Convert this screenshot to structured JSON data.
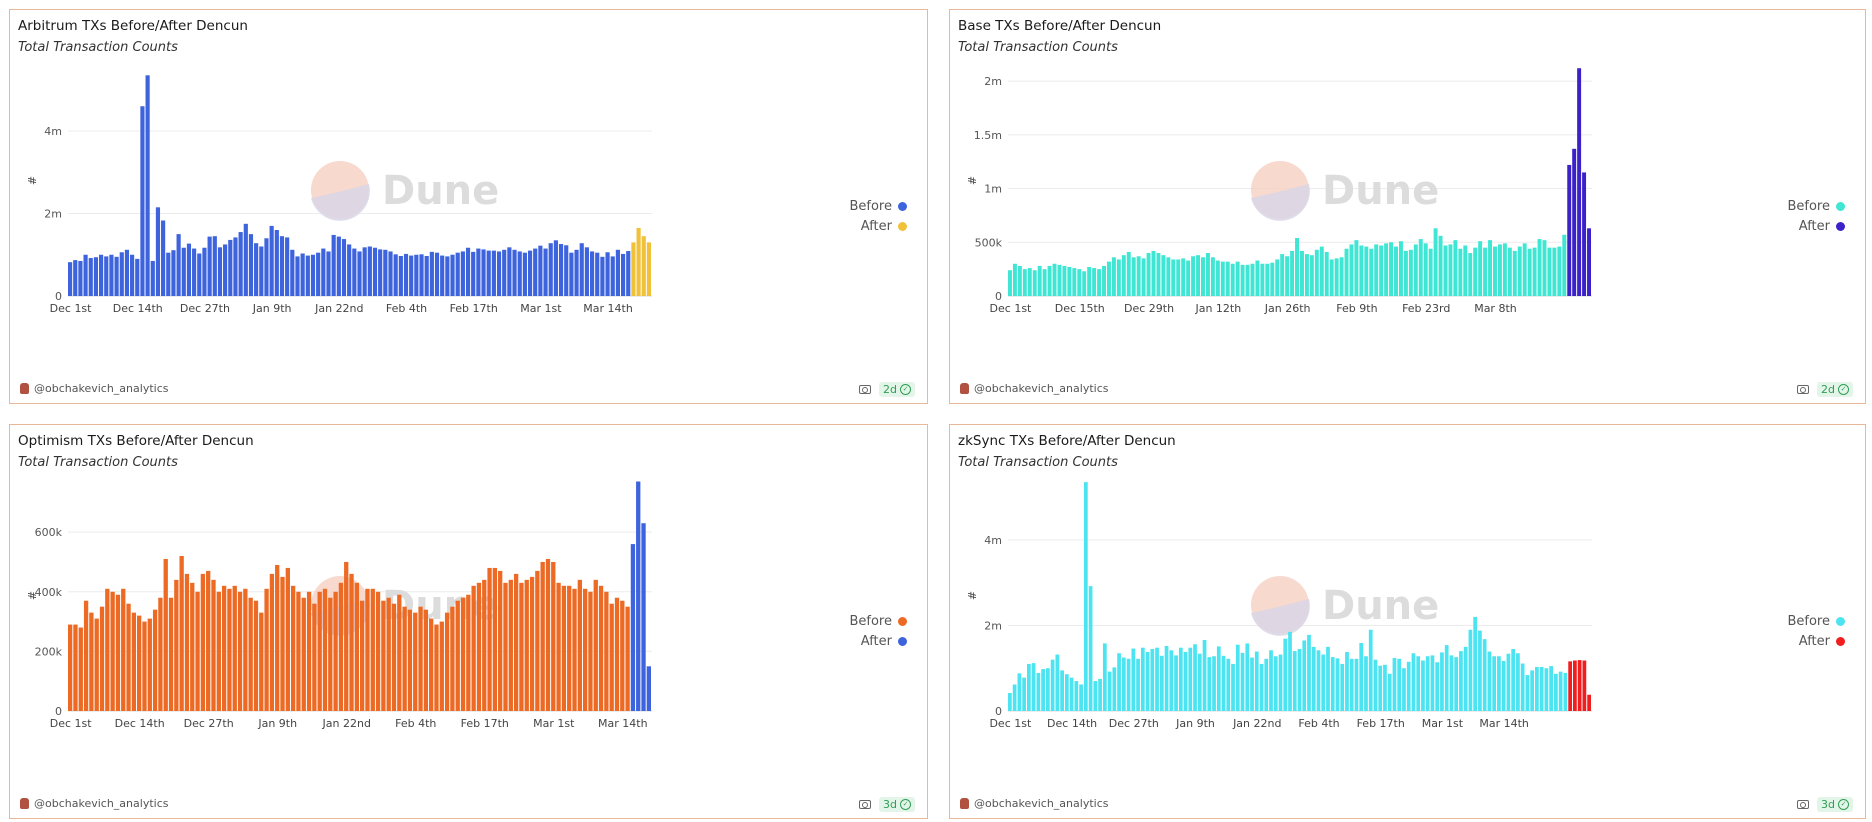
{
  "author": "@obchakevich_analytics",
  "chart_data": [
    {
      "type": "bar",
      "title": "Arbitrum TXs Before/After Dencun",
      "subtitle": "Total Transaction Counts",
      "ylabel": "#",
      "ylim": [
        0,
        5600000
      ],
      "yticks": [
        {
          "v": 0,
          "label": "0"
        },
        {
          "v": 2000000,
          "label": "2m"
        },
        {
          "v": 4000000,
          "label": "4m"
        }
      ],
      "x_labels": [
        "Dec 1st",
        "Dec 14th",
        "Dec 27th",
        "Jan 9th",
        "Jan 22nd",
        "Feb 4th",
        "Feb 17th",
        "Mar 1st",
        "Mar 14th"
      ],
      "label_step": 13,
      "series": [
        {
          "name": "Before",
          "color": "#3d63dd",
          "values": [
            820000,
            870000,
            850000,
            1000000,
            920000,
            940000,
            1000000,
            960000,
            1000000,
            950000,
            1060000,
            1120000,
            1000000,
            900000,
            4600000,
            5350000,
            850000,
            2150000,
            1830000,
            1050000,
            1110000,
            1500000,
            1170000,
            1270000,
            1150000,
            1030000,
            1170000,
            1440000,
            1450000,
            1180000,
            1250000,
            1360000,
            1420000,
            1550000,
            1750000,
            1500000,
            1280000,
            1200000,
            1400000,
            1700000,
            1600000,
            1450000,
            1420000,
            1120000,
            960000,
            1030000,
            980000,
            1000000,
            1050000,
            1150000,
            1080000,
            1480000,
            1440000,
            1380000,
            1250000,
            1150000,
            1080000,
            1180000,
            1200000,
            1170000,
            1130000,
            1120000,
            1080000,
            1010000,
            970000,
            1020000,
            980000,
            1000000,
            1010000,
            970000,
            1070000,
            1050000,
            980000,
            960000,
            1000000,
            1050000,
            1080000,
            1170000,
            1070000,
            1150000,
            1130000,
            1100000,
            1100000,
            1080000,
            1120000,
            1180000,
            1120000,
            1080000,
            1050000,
            1100000,
            1150000,
            1220000,
            1150000,
            1280000,
            1350000,
            1260000,
            1230000,
            1050000,
            1120000,
            1280000,
            1180000,
            1080000,
            1050000,
            950000,
            1060000,
            960000,
            1120000,
            1020000,
            1090000
          ]
        },
        {
          "name": "After",
          "color": "#f0c23a",
          "values": [
            1300000,
            1650000,
            1450000,
            1300000
          ]
        }
      ]
    },
    {
      "type": "bar",
      "title": "Base TXs Before/After Dencun",
      "subtitle": "Total Transaction Counts",
      "ylabel": "#",
      "ylim": [
        0,
        2150000
      ],
      "yticks": [
        {
          "v": 0,
          "label": "0"
        },
        {
          "v": 500000,
          "label": "500k"
        },
        {
          "v": 1000000,
          "label": "1m"
        },
        {
          "v": 1500000,
          "label": "1.5m"
        },
        {
          "v": 2000000,
          "label": "2m"
        }
      ],
      "x_labels": [
        "Dec 1st",
        "Dec 15th",
        "Dec 29th",
        "Jan 12th",
        "Jan 26th",
        "Feb 9th",
        "Feb 23rd",
        "Mar 8th"
      ],
      "label_step": 14,
      "series": [
        {
          "name": "Before",
          "color": "#3fe6d3",
          "values": [
            240000,
            300000,
            280000,
            250000,
            260000,
            240000,
            280000,
            250000,
            280000,
            300000,
            290000,
            280000,
            270000,
            260000,
            250000,
            230000,
            270000,
            260000,
            250000,
            280000,
            320000,
            360000,
            340000,
            380000,
            410000,
            360000,
            370000,
            350000,
            400000,
            420000,
            400000,
            380000,
            360000,
            340000,
            340000,
            350000,
            330000,
            370000,
            380000,
            360000,
            400000,
            360000,
            330000,
            320000,
            320000,
            300000,
            320000,
            290000,
            290000,
            300000,
            330000,
            300000,
            300000,
            310000,
            340000,
            390000,
            370000,
            420000,
            540000,
            420000,
            390000,
            380000,
            430000,
            460000,
            410000,
            340000,
            350000,
            360000,
            440000,
            480000,
            520000,
            470000,
            460000,
            440000,
            480000,
            470000,
            490000,
            500000,
            460000,
            510000,
            420000,
            430000,
            480000,
            530000,
            490000,
            440000,
            630000,
            560000,
            470000,
            480000,
            520000,
            440000,
            470000,
            400000,
            450000,
            510000,
            450000,
            520000,
            460000,
            480000,
            490000,
            450000,
            420000,
            460000,
            490000,
            440000,
            450000,
            530000,
            520000,
            450000,
            450000,
            460000,
            570000
          ]
        },
        {
          "name": "After",
          "color": "#3b22c8",
          "values": [
            1220000,
            1370000,
            2120000,
            1150000,
            630000
          ]
        }
      ]
    },
    {
      "type": "bar",
      "title": "Optimism TXs Before/After Dencun",
      "subtitle": "Total Transaction Counts",
      "ylabel": "#",
      "ylim": [
        0,
        775000
      ],
      "yticks": [
        {
          "v": 0,
          "label": "0"
        },
        {
          "v": 200000,
          "label": "200k"
        },
        {
          "v": 400000,
          "label": "400k"
        },
        {
          "v": 600000,
          "label": "600k"
        }
      ],
      "x_labels": [
        "Dec 1st",
        "Dec 14th",
        "Dec 27th",
        "Jan 9th",
        "Jan 22nd",
        "Feb 4th",
        "Feb 17th",
        "Mar 1st",
        "Mar 14th"
      ],
      "label_step": 13,
      "series": [
        {
          "name": "Before",
          "color": "#ec6a24",
          "values": [
            290000,
            290000,
            280000,
            370000,
            330000,
            310000,
            350000,
            410000,
            400000,
            390000,
            410000,
            360000,
            330000,
            320000,
            300000,
            310000,
            340000,
            380000,
            510000,
            380000,
            440000,
            520000,
            460000,
            430000,
            400000,
            460000,
            470000,
            440000,
            400000,
            420000,
            410000,
            420000,
            400000,
            410000,
            380000,
            370000,
            330000,
            410000,
            460000,
            490000,
            450000,
            480000,
            420000,
            400000,
            380000,
            400000,
            360000,
            400000,
            410000,
            380000,
            400000,
            430000,
            500000,
            460000,
            430000,
            370000,
            410000,
            410000,
            400000,
            370000,
            380000,
            360000,
            390000,
            350000,
            340000,
            330000,
            350000,
            340000,
            310000,
            290000,
            300000,
            330000,
            350000,
            370000,
            380000,
            390000,
            420000,
            430000,
            440000,
            480000,
            480000,
            470000,
            430000,
            440000,
            460000,
            430000,
            440000,
            450000,
            470000,
            500000,
            510000,
            500000,
            430000,
            420000,
            420000,
            410000,
            440000,
            410000,
            400000,
            440000,
            420000,
            400000,
            360000,
            380000,
            370000,
            350000
          ]
        },
        {
          "name": "After",
          "color": "#3d63dd",
          "values": [
            560000,
            770000,
            630000,
            150000
          ]
        }
      ]
    },
    {
      "type": "bar",
      "title": "zkSync TXs Before/After Dencun",
      "subtitle": "Total Transaction Counts",
      "ylabel": "#",
      "ylim": [
        0,
        5400000
      ],
      "yticks": [
        {
          "v": 0,
          "label": "0"
        },
        {
          "v": 2000000,
          "label": "2m"
        },
        {
          "v": 4000000,
          "label": "4m"
        }
      ],
      "x_labels": [
        "Dec 1st",
        "Dec 14th",
        "Dec 27th",
        "Jan 9th",
        "Jan 22nd",
        "Feb 4th",
        "Feb 17th",
        "Mar 1st",
        "Mar 14th"
      ],
      "label_step": 13,
      "series": [
        {
          "name": "Before",
          "color": "#4de4f2",
          "values": [
            420000,
            620000,
            880000,
            780000,
            1100000,
            1120000,
            890000,
            980000,
            1000000,
            1200000,
            1320000,
            950000,
            860000,
            780000,
            700000,
            620000,
            5350000,
            2920000,
            700000,
            750000,
            1580000,
            920000,
            1020000,
            1350000,
            1250000,
            1220000,
            1460000,
            1220000,
            1480000,
            1380000,
            1450000,
            1480000,
            1290000,
            1520000,
            1420000,
            1300000,
            1480000,
            1380000,
            1480000,
            1560000,
            1340000,
            1660000,
            1260000,
            1280000,
            1510000,
            1290000,
            1220000,
            1100000,
            1550000,
            1360000,
            1580000,
            1250000,
            1390000,
            1100000,
            1220000,
            1420000,
            1280000,
            1320000,
            1690000,
            1850000,
            1400000,
            1450000,
            1650000,
            1780000,
            1500000,
            1420000,
            1320000,
            1500000,
            1260000,
            1230000,
            1100000,
            1380000,
            1220000,
            1220000,
            1590000,
            1280000,
            1900000,
            1200000,
            1060000,
            1080000,
            870000,
            1240000,
            1220000,
            1000000,
            1150000,
            1350000,
            1280000,
            1180000,
            1280000,
            1300000,
            1140000,
            1370000,
            1540000,
            1300000,
            1260000,
            1400000,
            1500000,
            1900000,
            2200000,
            1880000,
            1680000,
            1390000,
            1280000,
            1280000,
            1170000,
            1340000,
            1450000,
            1350000,
            1110000,
            840000,
            950000,
            1030000,
            1030000,
            1000000,
            1050000,
            870000,
            920000,
            890000
          ]
        },
        {
          "name": "After",
          "color": "#f01e1e",
          "values": [
            1160000,
            1180000,
            1190000,
            1180000,
            380000
          ]
        }
      ]
    }
  ],
  "panels": [
    {
      "badge": "2d"
    },
    {
      "badge": "2d"
    },
    {
      "badge": "3d"
    },
    {
      "badge": "3d"
    }
  ],
  "watermark": "Dune"
}
